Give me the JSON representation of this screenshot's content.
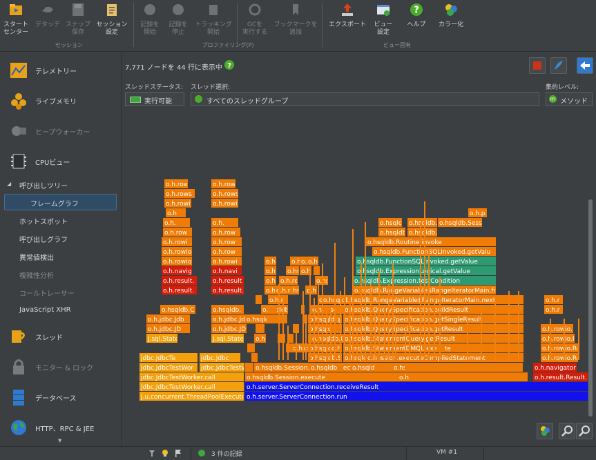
{
  "toolbar": {
    "buttons": [
      {
        "id": "start-center",
        "label": "スタート\nセンター",
        "icon": "folder-icon",
        "enabled": true
      },
      {
        "id": "detach",
        "label": "デタッチ",
        "icon": "detach-icon",
        "enabled": false
      },
      {
        "id": "snapshot-save",
        "label": "スナップ\n保存",
        "icon": "save-icon",
        "enabled": false
      },
      {
        "id": "session-settings",
        "label": "セッション\n設定",
        "icon": "settings-clipboard-icon",
        "enabled": true
      },
      {
        "id": "start-recording",
        "label": "記録を\n開始",
        "icon": "record-start-icon",
        "enabled": false
      },
      {
        "id": "stop-recording",
        "label": "記録を\n停止",
        "icon": "record-stop-icon",
        "enabled": false
      },
      {
        "id": "start-tracking",
        "label": "トラッキング\n開始",
        "icon": "tracking-icon",
        "enabled": false
      },
      {
        "id": "run-gc",
        "label": "GCを\n実行する",
        "icon": "gc-icon",
        "enabled": false
      },
      {
        "id": "add-bookmark",
        "label": "ブックマークを\n追加",
        "icon": "bookmark-icon",
        "enabled": false
      },
      {
        "id": "export",
        "label": "エクスポート",
        "icon": "export-icon",
        "enabled": true
      },
      {
        "id": "view-settings",
        "label": "ビュー\n設定",
        "icon": "view-settings-icon",
        "enabled": true
      },
      {
        "id": "help",
        "label": "ヘルプ",
        "icon": "help-icon",
        "enabled": true
      },
      {
        "id": "colorize",
        "label": "カラー化",
        "icon": "colorize-icon",
        "enabled": true
      }
    ],
    "groups": {
      "session": "セッション",
      "profiling": "プロファイリング(P)",
      "view": "ビュー固有"
    }
  },
  "sidebar": {
    "telemetry": "テレメトリー",
    "live_memory": "ライブメモリ",
    "heap_walker": "ヒープウォーカー",
    "cpu_views": "CPUビュー",
    "call_tree": "呼び出しツリー",
    "flame_graph": "フレームグラフ",
    "hot_spots": "ホットスポット",
    "call_graph": "呼び出しグラフ",
    "outlier_detection": "異常値検出",
    "complexity_analysis": "複雑性分析",
    "call_tracer": "コールトレーサー",
    "javascript_xhr": "JavaScript XHR",
    "threads": "スレッド",
    "monitors_locks": "モニター & ロック",
    "databases": "データベース",
    "http_rpc_jee": "HTTP、RPC & JEE"
  },
  "main": {
    "summary": "7,771 ノードを 44 行に表示中",
    "thread_status_label": "スレッドステータス:",
    "thread_status_value": "実行可能",
    "thread_select_label": "スレッド選択:",
    "thread_select_value": "すべてのスレッドグループ",
    "aggregation_label": "集約レベル:",
    "aggregation_value": "メソッド"
  },
  "status_bar": {
    "records": "3 件の記録",
    "vm": "VM #1"
  },
  "colors": {
    "orange": "#f07b05",
    "yellow": "#f3a00c",
    "red": "#d41d0a",
    "green": "#2e9a72",
    "blue": "#1111ee"
  },
  "flame": [
    {
      "t": "o.h.server.ServerConnection.run",
      "c": "b"
    },
    {
      "t": "j.u.concurrent.ThreadPoolExecutor",
      "c": "y"
    },
    {
      "t": "o.h.server.ServerConnection.receiveResult",
      "c": "b"
    },
    {
      "t": "jdbc.JdbcTestWorker.call",
      "c": "y"
    },
    {
      "t": "o.hsqldb.Session.execute",
      "c": "o"
    },
    {
      "t": "jdbc.JdbcTestWorker.call",
      "c": "y"
    },
    {
      "t": "o.hsqldb.Session.executeDirectStatement",
      "c": "o"
    },
    {
      "t": "o.h.result.Result.o",
      "c": "r"
    },
    {
      "t": "o.h.navigator.",
      "c": "r"
    },
    {
      "t": "jdbc.JdbcTestWor",
      "c": "y"
    },
    {
      "t": "jdbc.JdbcTestWor",
      "c": "y"
    },
    {
      "t": "o.h.Session",
      "c": "o"
    },
    {
      "t": "o.hsqldb.Session",
      "c": "o"
    },
    {
      "t": "o.hsqldb.Session.executeCompiledStatement",
      "c": "o"
    },
    {
      "t": "jdbc.JdbcTe",
      "c": "y"
    },
    {
      "t": "jdbc.Jdbc",
      "c": "y"
    },
    {
      "t": "o.hsqldb.State",
      "c": "o"
    },
    {
      "t": "o.hsqldb.StatementDMQL.execute",
      "c": "o"
    },
    {
      "t": "o.h.rowio.Ro",
      "c": "o"
    },
    {
      "t": "o.h.rowio.Ro",
      "c": "o"
    },
    {
      "t": "j.sql.Stater",
      "c": "y"
    },
    {
      "t": "j.sql.Stater",
      "c": "y"
    },
    {
      "t": "o.hsqldb",
      "c": "o"
    },
    {
      "t": "o.hsqldb.StatementQuery.getResult",
      "c": "o"
    },
    {
      "t": "o.h.rowio.R",
      "c": "o"
    },
    {
      "t": "o.h.jdbc.JD",
      "c": "o"
    },
    {
      "t": "o.h.jdbc.JD",
      "c": "o"
    },
    {
      "t": "o.hsqldb.QuerySpecification.getResult",
      "c": "o"
    },
    {
      "t": "o.h.rowio.R",
      "c": "o"
    },
    {
      "t": "o.h.jdbc.Jdb",
      "c": "o"
    },
    {
      "t": "o.h.jdbc.Jdb",
      "c": "o"
    },
    {
      "t": "o.hsqldb.QuerySpecification.getSingleResult",
      "c": "o"
    },
    {
      "t": "o.h.r",
      "c": "o"
    },
    {
      "t": "o.hsqldb.C",
      "c": "o"
    },
    {
      "t": "o.hsqldb.",
      "c": "o"
    },
    {
      "t": "o.hsqldb.QuerySpecification.buildResult",
      "c": "o"
    },
    {
      "t": "o.h.r",
      "c": "o"
    },
    {
      "t": "o.h.result.",
      "c": "r"
    },
    {
      "t": "o.h.result.",
      "c": "r"
    },
    {
      "t": "o.hsqldb.RangeVariable$RangeIteratorMain.next",
      "c": "o"
    },
    {
      "t": "o.h.result.",
      "c": "r"
    },
    {
      "t": "o.h.result",
      "c": "r"
    },
    {
      "t": "o.hsqldb.RangeVariable$RangeIteratorMain.findN",
      "c": "o"
    },
    {
      "t": "o.h.navig",
      "c": "r"
    },
    {
      "t": "o.h.navi",
      "c": "r"
    },
    {
      "t": "o.hsqldb.Expression.testCondition",
      "c": "g"
    },
    {
      "t": "o.h.rowio",
      "c": "o"
    },
    {
      "t": "o.h.rowi",
      "c": "o"
    },
    {
      "t": "o.hsqldb.ExpressionLogical.getValue",
      "c": "g"
    },
    {
      "t": "o.h.rowio",
      "c": "o"
    },
    {
      "t": "o.h.row",
      "c": "o"
    },
    {
      "t": "o.hsqldb.FunctionSQLInvoked.getValue",
      "c": "g"
    },
    {
      "t": "o.hsqldb.FunctionSQLInvoked.getValu",
      "c": "o"
    },
    {
      "t": "o.h.rowi",
      "c": "o"
    },
    {
      "t": "o.h.row",
      "c": "o"
    },
    {
      "t": "o.hsqldb.Routine.invoke",
      "c": "o"
    },
    {
      "t": "o.h.row",
      "c": "o"
    },
    {
      "t": "o.h.row",
      "c": "o"
    },
    {
      "t": "o.hsqldb.Se",
      "c": "o"
    },
    {
      "t": "o.hsqldb.Sessi",
      "c": "o"
    },
    {
      "t": "o.hsqld",
      "c": "o"
    },
    {
      "t": "o.hsqldb.Sessi",
      "c": "o"
    },
    {
      "t": "o.hsqldb.Se",
      "c": "o"
    },
    {
      "t": "o.h.p",
      "c": "o"
    },
    {
      "t": "o.h.",
      "c": "o"
    },
    {
      "t": "o.h.",
      "c": "o"
    },
    {
      "t": "o.h",
      "c": "o"
    },
    {
      "t": "o.hs",
      "c": "o"
    },
    {
      "t": "o.h",
      "c": "o"
    },
    {
      "t": "o.hs",
      "c": "o"
    },
    {
      "t": "o.hs",
      "c": "o"
    },
    {
      "t": "o.hs",
      "c": "o"
    },
    {
      "t": "o.h",
      "c": "o"
    },
    {
      "t": "o.hs",
      "c": "o"
    },
    {
      "t": "o.hs",
      "c": "o"
    },
    {
      "t": "o.hs",
      "c": "o"
    },
    {
      "t": "o.hsqldb",
      "c": "o"
    },
    {
      "t": "o.hsqldb.",
      "c": "o"
    },
    {
      "t": "o.h.r",
      "c": "o"
    },
    {
      "t": "o.h.r",
      "c": "o"
    },
    {
      "t": "o.h.re",
      "c": "o"
    },
    {
      "t": "o.hs",
      "c": "o"
    },
    {
      "t": "o.h",
      "c": "o"
    },
    {
      "t": "o.h.",
      "c": "o"
    },
    {
      "t": "o.hsq",
      "c": "o"
    },
    {
      "t": "o.h",
      "c": "o"
    },
    {
      "t": "o.h",
      "c": "o"
    },
    {
      "t": "o.hsq",
      "c": "o"
    },
    {
      "t": "o.hsq",
      "c": "o"
    },
    {
      "t": "o.h",
      "c": "o"
    },
    {
      "t": "o.hsqld",
      "c": "o"
    },
    {
      "t": "o.h",
      "c": "o"
    },
    {
      "t": "o.hsqld",
      "c": "o"
    },
    {
      "t": "o.h",
      "c": "o"
    },
    {
      "t": "o.hsqld",
      "c": "o"
    },
    {
      "t": "o.h",
      "c": "o"
    },
    {
      "t": "o.hsqldb",
      "c": "o"
    },
    {
      "t": "o.h",
      "c": "o"
    },
    {
      "t": "o.h",
      "c": "o"
    },
    {
      "t": "o.hsqldb",
      "c": "o"
    },
    {
      "t": "o.hsqld",
      "c": "o"
    },
    {
      "t": "o.h",
      "c": "o"
    },
    {
      "t": "o.hsqldb.C",
      "c": "o"
    },
    {
      "t": "o.h",
      "c": "o"
    },
    {
      "t": "o.hsqldb.C",
      "c": "o"
    },
    {
      "t": "o.hs",
      "c": "o"
    },
    {
      "t": "o.h",
      "c": "o"
    },
    {
      "t": "o.h",
      "c": "o"
    },
    {
      "t": "o.hs",
      "c": "o"
    },
    {
      "t": "o.hs",
      "c": "o"
    },
    {
      "t": "o.h",
      "c": "o"
    },
    {
      "t": "o.h",
      "c": "o"
    },
    {
      "t": "o.h",
      "c": "o"
    },
    {
      "t": "o.h",
      "c": "o"
    },
    {
      "t": "o.h",
      "c": "o"
    },
    {
      "t": "o.h",
      "c": "o"
    },
    {
      "t": "o.h",
      "c": "o"
    },
    {
      "t": "o.h",
      "c": "o"
    },
    {
      "t": "o.h.rows",
      "c": "o"
    },
    {
      "t": "o.h.rows",
      "c": "o"
    },
    {
      "t": "o.h.rowi",
      "c": "o"
    },
    {
      "t": "o.h.rowi",
      "c": "o"
    },
    {
      "t": "o.h.rowio",
      "c": "o"
    },
    {
      "t": "o.h.rowio",
      "c": "o"
    },
    {
      "t": "o.hsqldb.C",
      "c": "o"
    },
    {
      "t": "o.hsqldb.C",
      "c": "o"
    }
  ]
}
